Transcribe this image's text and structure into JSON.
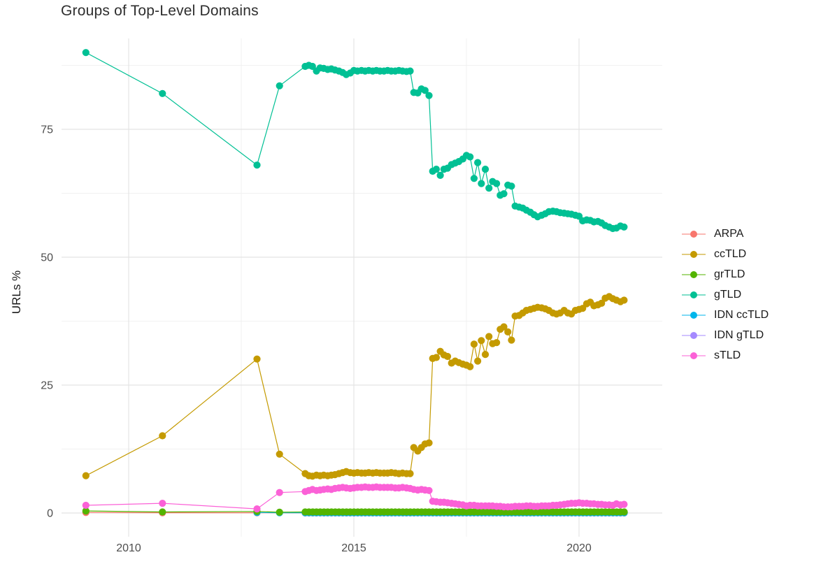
{
  "title": "Groups of Top-Level Domains",
  "colors": {
    "background": "#ffffff",
    "grid_major": "#e4e4e4",
    "grid_minor": "#f1f1f1",
    "axis_text": "#4d4d4d",
    "title_text": "#2e2e2e"
  },
  "chart_data": {
    "type": "scatter",
    "title": "Groups of Top-Level Domains",
    "xlabel": "",
    "ylabel": "URLs %",
    "grid": true,
    "legend_position": "right",
    "x_ticks": [
      2010,
      2015,
      2020
    ],
    "x_tick_labels": [
      "2010",
      "2015",
      "2020"
    ],
    "x_minor_ticks": [
      2012.5,
      2017.5
    ],
    "y_ticks": [
      0,
      25,
      50,
      75
    ],
    "y_tick_labels": [
      "0",
      "25",
      "50",
      "75"
    ],
    "y_minor_ticks": [
      12.5,
      37.5,
      62.5,
      87.5
    ],
    "x_range": [
      2008.5,
      2021.85
    ],
    "y_range": [
      -4.6,
      92.8
    ],
    "draw_order": [
      "ARPA",
      "IDN gTLD",
      "IDN ccTLD",
      "grTLD",
      "ccTLD",
      "gTLD",
      "sTLD"
    ],
    "series": [
      {
        "name": "ARPA",
        "color": "#F8766D",
        "x": [
          2009.05,
          2010.75,
          2012.85
        ],
        "y": [
          0.1,
          0.05,
          0.05
        ],
        "run": {
          "start": 2013.92,
          "step": 0.08333,
          "count": 86,
          "value": 0.02
        }
      },
      {
        "name": "ccTLD",
        "color": "#C49A00",
        "x": [
          2009.05,
          2010.75,
          2012.85,
          2013.35,
          2013.92,
          2014.0,
          2014.08,
          2014.17,
          2014.25,
          2014.33,
          2014.42,
          2014.5,
          2014.58,
          2014.67,
          2014.75,
          2014.83,
          2014.92,
          2015.0,
          2015.08,
          2015.17,
          2015.25,
          2015.33,
          2015.42,
          2015.5,
          2015.58,
          2015.67,
          2015.75,
          2015.83,
          2015.92,
          2016.0,
          2016.08,
          2016.17,
          2016.25,
          2016.33,
          2016.42,
          2016.5,
          2016.58,
          2016.67,
          2016.75,
          2016.83,
          2016.92,
          2017.0,
          2017.08,
          2017.17,
          2017.25,
          2017.33,
          2017.42,
          2017.5,
          2017.58,
          2017.67,
          2017.75,
          2017.83,
          2017.92,
          2018.0,
          2018.08,
          2018.17,
          2018.25,
          2018.33,
          2018.42,
          2018.5,
          2018.58,
          2018.67,
          2018.75,
          2018.83,
          2018.92,
          2019.0,
          2019.08,
          2019.17,
          2019.25,
          2019.33,
          2019.42,
          2019.5,
          2019.58,
          2019.67,
          2019.75,
          2019.83,
          2019.92,
          2020.0,
          2020.08,
          2020.17,
          2020.25,
          2020.33,
          2020.42,
          2020.5,
          2020.58,
          2020.67,
          2020.75,
          2020.83,
          2020.92,
          2021.0
        ],
        "y": [
          7.3,
          15.1,
          30.1,
          11.5,
          7.7,
          7.3,
          7.2,
          7.4,
          7.3,
          7.4,
          7.3,
          7.4,
          7.5,
          7.7,
          7.9,
          8.1,
          7.9,
          7.8,
          7.9,
          7.8,
          7.8,
          7.9,
          7.8,
          7.9,
          7.8,
          7.8,
          7.8,
          7.9,
          7.8,
          7.7,
          7.8,
          7.7,
          7.7,
          12.8,
          12.1,
          12.8,
          13.5,
          13.7,
          30.2,
          30.4,
          31.6,
          30.9,
          30.6,
          29.3,
          29.7,
          29.4,
          29.1,
          28.9,
          28.6,
          33.0,
          29.7,
          33.7,
          31.0,
          34.5,
          33.1,
          33.3,
          35.9,
          36.4,
          35.4,
          33.8,
          38.5,
          38.6,
          39.1,
          39.6,
          39.8,
          40.0,
          40.2,
          40.1,
          39.9,
          39.6,
          39.1,
          38.9,
          39.1,
          39.6,
          39.1,
          38.9,
          39.6,
          39.8,
          40.0,
          40.9,
          41.2,
          40.5,
          40.7,
          41.0,
          42.0,
          42.3,
          41.9,
          41.6,
          41.3,
          41.6
        ]
      },
      {
        "name": "grTLD",
        "color": "#53B400",
        "x": [
          2009.05,
          2010.75,
          2012.85,
          2013.35
        ],
        "y": [
          0.4,
          0.2,
          0.3,
          0.15
        ],
        "run": {
          "start": 2013.92,
          "step": 0.08333,
          "count": 86,
          "value": 0.2
        }
      },
      {
        "name": "gTLD",
        "color": "#00C094",
        "x": [
          2009.05,
          2010.75,
          2012.85,
          2013.35,
          2013.92,
          2014.0,
          2014.08,
          2014.17,
          2014.25,
          2014.33,
          2014.42,
          2014.5,
          2014.58,
          2014.67,
          2014.75,
          2014.83,
          2014.92,
          2015.0,
          2015.08,
          2015.17,
          2015.25,
          2015.33,
          2015.42,
          2015.5,
          2015.58,
          2015.67,
          2015.75,
          2015.83,
          2015.92,
          2016.0,
          2016.08,
          2016.17,
          2016.25,
          2016.33,
          2016.42,
          2016.5,
          2016.58,
          2016.67,
          2016.75,
          2016.83,
          2016.92,
          2017.0,
          2017.08,
          2017.17,
          2017.25,
          2017.33,
          2017.42,
          2017.5,
          2017.58,
          2017.67,
          2017.75,
          2017.83,
          2017.92,
          2018.0,
          2018.08,
          2018.17,
          2018.25,
          2018.33,
          2018.42,
          2018.5,
          2018.58,
          2018.67,
          2018.75,
          2018.83,
          2018.92,
          2019.0,
          2019.08,
          2019.17,
          2019.25,
          2019.33,
          2019.42,
          2019.5,
          2019.58,
          2019.67,
          2019.75,
          2019.83,
          2019.92,
          2020.0,
          2020.08,
          2020.17,
          2020.25,
          2020.33,
          2020.42,
          2020.5,
          2020.58,
          2020.67,
          2020.75,
          2020.83,
          2020.92,
          2021.0
        ],
        "y": [
          90.0,
          82.0,
          68.0,
          83.5,
          87.3,
          87.5,
          87.3,
          86.4,
          87.0,
          86.9,
          86.7,
          86.8,
          86.6,
          86.4,
          86.1,
          85.7,
          86.0,
          86.5,
          86.4,
          86.5,
          86.4,
          86.5,
          86.4,
          86.5,
          86.4,
          86.4,
          86.5,
          86.4,
          86.4,
          86.5,
          86.4,
          86.3,
          86.4,
          82.2,
          82.1,
          82.9,
          82.6,
          81.6,
          66.8,
          67.2,
          66.0,
          67.2,
          67.4,
          68.1,
          68.4,
          68.7,
          69.2,
          69.9,
          69.6,
          65.4,
          68.5,
          64.4,
          67.2,
          63.5,
          64.8,
          64.4,
          62.1,
          62.4,
          64.1,
          63.9,
          60.0,
          59.8,
          59.6,
          59.2,
          58.8,
          58.3,
          57.9,
          58.2,
          58.5,
          58.9,
          59.0,
          58.9,
          58.7,
          58.6,
          58.5,
          58.4,
          58.2,
          58.0,
          57.1,
          57.3,
          57.2,
          56.9,
          57.0,
          56.7,
          56.2,
          55.9,
          55.6,
          55.7,
          56.1,
          55.9
        ]
      },
      {
        "name": "IDN ccTLD",
        "color": "#00B6EB",
        "x": [
          2012.85,
          2013.35
        ],
        "y": [
          0.1,
          0.05
        ],
        "run": {
          "start": 2013.92,
          "step": 0.08333,
          "count": 86,
          "value": 0.05
        }
      },
      {
        "name": "IDN gTLD",
        "color": "#A58AFF",
        "x": [],
        "y": [],
        "run": {
          "start": 2013.92,
          "step": 0.08333,
          "count": 86,
          "value": 0.03
        }
      },
      {
        "name": "sTLD",
        "color": "#FB61D7",
        "x": [
          2009.05,
          2010.75,
          2012.85,
          2013.35,
          2013.92,
          2014.0,
          2014.08,
          2014.17,
          2014.25,
          2014.33,
          2014.42,
          2014.5,
          2014.58,
          2014.67,
          2014.75,
          2014.83,
          2014.92,
          2015.0,
          2015.08,
          2015.17,
          2015.25,
          2015.33,
          2015.42,
          2015.5,
          2015.58,
          2015.67,
          2015.75,
          2015.83,
          2015.92,
          2016.0,
          2016.08,
          2016.17,
          2016.25,
          2016.33,
          2016.42,
          2016.5,
          2016.58,
          2016.67,
          2016.75,
          2016.83,
          2016.92,
          2017.0,
          2017.08,
          2017.17,
          2017.25,
          2017.33,
          2017.42,
          2017.5,
          2017.58,
          2017.67,
          2017.75,
          2017.83,
          2017.92,
          2018.0,
          2018.08,
          2018.17,
          2018.25,
          2018.33,
          2018.42,
          2018.5,
          2018.58,
          2018.67,
          2018.75,
          2018.83,
          2018.92,
          2019.0,
          2019.08,
          2019.17,
          2019.25,
          2019.33,
          2019.42,
          2019.5,
          2019.58,
          2019.67,
          2019.75,
          2019.83,
          2019.92,
          2020.0,
          2020.08,
          2020.17,
          2020.25,
          2020.33,
          2020.42,
          2020.5,
          2020.58,
          2020.67,
          2020.75,
          2020.83,
          2020.92,
          2021.0
        ],
        "y": [
          1.5,
          1.9,
          0.8,
          4.0,
          4.2,
          4.4,
          4.6,
          4.4,
          4.5,
          4.6,
          4.7,
          4.6,
          4.8,
          4.9,
          5.0,
          4.9,
          4.8,
          4.9,
          5.0,
          5.0,
          5.1,
          5.0,
          5.0,
          5.1,
          5.0,
          5.0,
          5.0,
          5.0,
          4.9,
          4.9,
          5.0,
          4.9,
          4.8,
          4.6,
          4.5,
          4.6,
          4.5,
          4.4,
          2.3,
          2.2,
          2.1,
          2.1,
          2.0,
          1.9,
          1.8,
          1.7,
          1.6,
          1.4,
          1.5,
          1.5,
          1.4,
          1.4,
          1.4,
          1.4,
          1.4,
          1.3,
          1.3,
          1.2,
          1.2,
          1.2,
          1.3,
          1.3,
          1.3,
          1.4,
          1.4,
          1.3,
          1.3,
          1.4,
          1.4,
          1.4,
          1.5,
          1.5,
          1.6,
          1.7,
          1.8,
          1.9,
          1.9,
          2.0,
          1.9,
          1.9,
          1.8,
          1.8,
          1.7,
          1.7,
          1.6,
          1.6,
          1.5,
          1.8,
          1.6,
          1.7
        ]
      }
    ]
  }
}
